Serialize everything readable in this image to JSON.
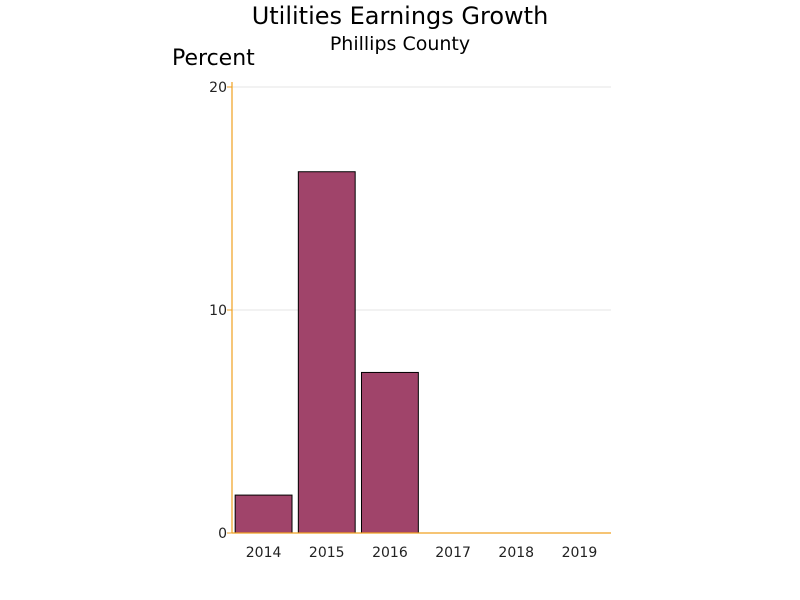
{
  "chart_data": {
    "type": "bar",
    "title": "Utilities Earnings Growth",
    "subtitle": "Phillips County",
    "ylabel": "Percent",
    "xlabel": "",
    "categories": [
      "2014",
      "2015",
      "2016",
      "2017",
      "2018",
      "2019"
    ],
    "values": [
      1.7,
      16.2,
      7.2,
      0,
      0,
      0
    ],
    "ylim": [
      0,
      20
    ],
    "yticks": [
      0,
      10,
      20
    ],
    "grid": true,
    "legend": "none",
    "colors": {
      "bar_fill": "#a0446a",
      "bar_stroke": "#000000",
      "axis": "#f0a020",
      "grid": "#e6e6e6"
    }
  }
}
